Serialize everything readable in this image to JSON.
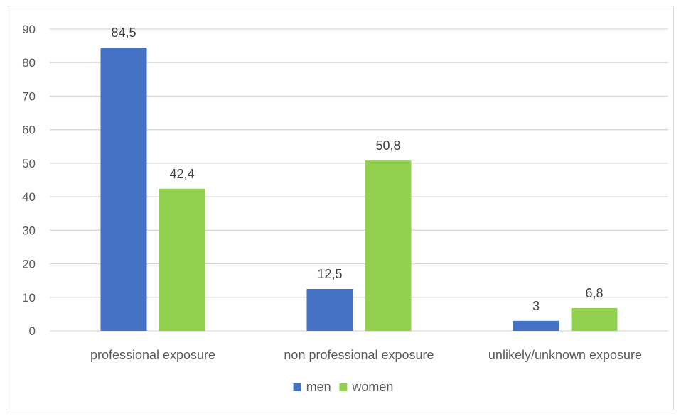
{
  "chart_data": {
    "type": "bar",
    "title": "",
    "xlabel": "",
    "ylabel": "",
    "categories": [
      "professional exposure",
      "non professional exposure",
      "unlikely/unknown exposure"
    ],
    "series": [
      {
        "name": "men",
        "values": [
          84.5,
          12.5,
          3
        ],
        "labels": [
          "84,5",
          "12,5",
          "3"
        ],
        "color": "#4472c4"
      },
      {
        "name": "women",
        "values": [
          42.4,
          50.8,
          6.8
        ],
        "labels": [
          "42,4",
          "50,8",
          "6,8"
        ],
        "color": "#92d050"
      }
    ],
    "ylim": [
      0,
      90
    ],
    "yticks": [
      0,
      10,
      20,
      30,
      40,
      50,
      60,
      70,
      80,
      90
    ],
    "grid": true,
    "gridline_color": "#d9d9d9",
    "legend": "bottom"
  }
}
